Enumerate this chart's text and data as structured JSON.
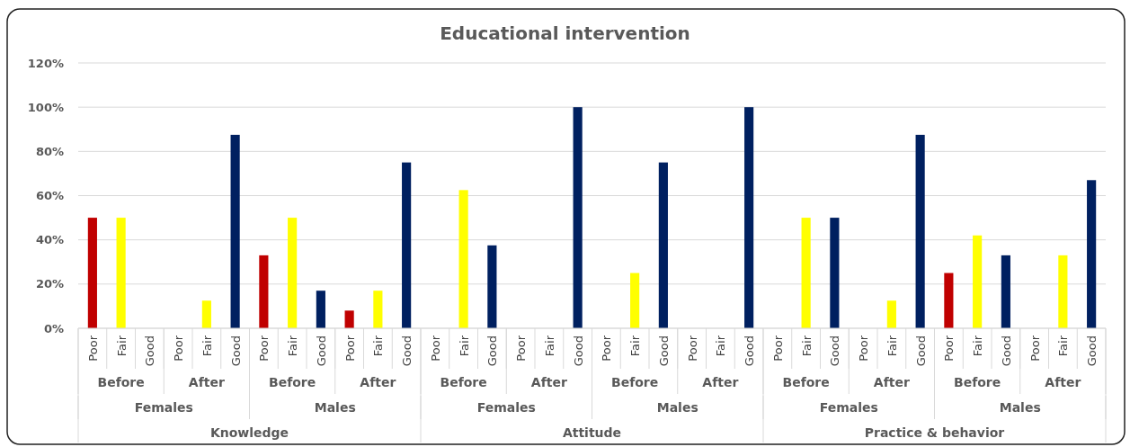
{
  "chart_data": {
    "type": "bar",
    "title": "Educational intervention",
    "categories": [
      "Poor",
      "Fair",
      "Good",
      "Poor",
      "Fair",
      "Good",
      "Poor",
      "Fair",
      "Good",
      "Poor",
      "Fair",
      "Good",
      "Poor",
      "Fair",
      "Good",
      "Poor",
      "Fair",
      "Good",
      "Poor",
      "Fair",
      "Good",
      "Poor",
      "Fair",
      "Good",
      "Poor",
      "Fair",
      "Good",
      "Poor",
      "Fair",
      "Good",
      "Poor",
      "Fair",
      "Good",
      "Poor",
      "Fair",
      "Good"
    ],
    "values": [
      50,
      50,
      0,
      0,
      12.5,
      87.5,
      33,
      50,
      17,
      8,
      17,
      75,
      0,
      62.5,
      37.5,
      0,
      0,
      100,
      0,
      25,
      75,
      0,
      0,
      100,
      0,
      50,
      50,
      0,
      12.5,
      87.5,
      25,
      42,
      33,
      0,
      33,
      67
    ],
    "colors": [
      "#c00000",
      "#ffff00",
      "#002060",
      "#c00000",
      "#ffff00",
      "#002060",
      "#c00000",
      "#ffff00",
      "#002060",
      "#c00000",
      "#ffff00",
      "#002060",
      "#c00000",
      "#ffff00",
      "#002060",
      "#c00000",
      "#ffff00",
      "#002060",
      "#c00000",
      "#ffff00",
      "#002060",
      "#c00000",
      "#ffff00",
      "#002060",
      "#c00000",
      "#ffff00",
      "#002060",
      "#c00000",
      "#ffff00",
      "#002060",
      "#c00000",
      "#ffff00",
      "#002060",
      "#c00000",
      "#ffff00",
      "#002060"
    ],
    "annotations": [
      "Before",
      "After",
      "Before",
      "After",
      "Before",
      "After",
      "Before",
      "After",
      "Before",
      "After",
      "Before",
      "After",
      "Females",
      "Males",
      "Females",
      "Males",
      "Females",
      "Males",
      "Knowledge",
      "Attitude",
      "Practice & behavior"
    ],
    "ylim": [
      0,
      120
    ],
    "yticks": [
      {
        "value": 0,
        "label": "0%"
      },
      {
        "value": 20,
        "label": "20%"
      },
      {
        "value": 40,
        "label": "40%"
      },
      {
        "value": 60,
        "label": "60%"
      },
      {
        "value": 80,
        "label": "80%"
      },
      {
        "value": 100,
        "label": "100%"
      },
      {
        "value": 120,
        "label": "120%"
      }
    ],
    "grid": "y"
  }
}
